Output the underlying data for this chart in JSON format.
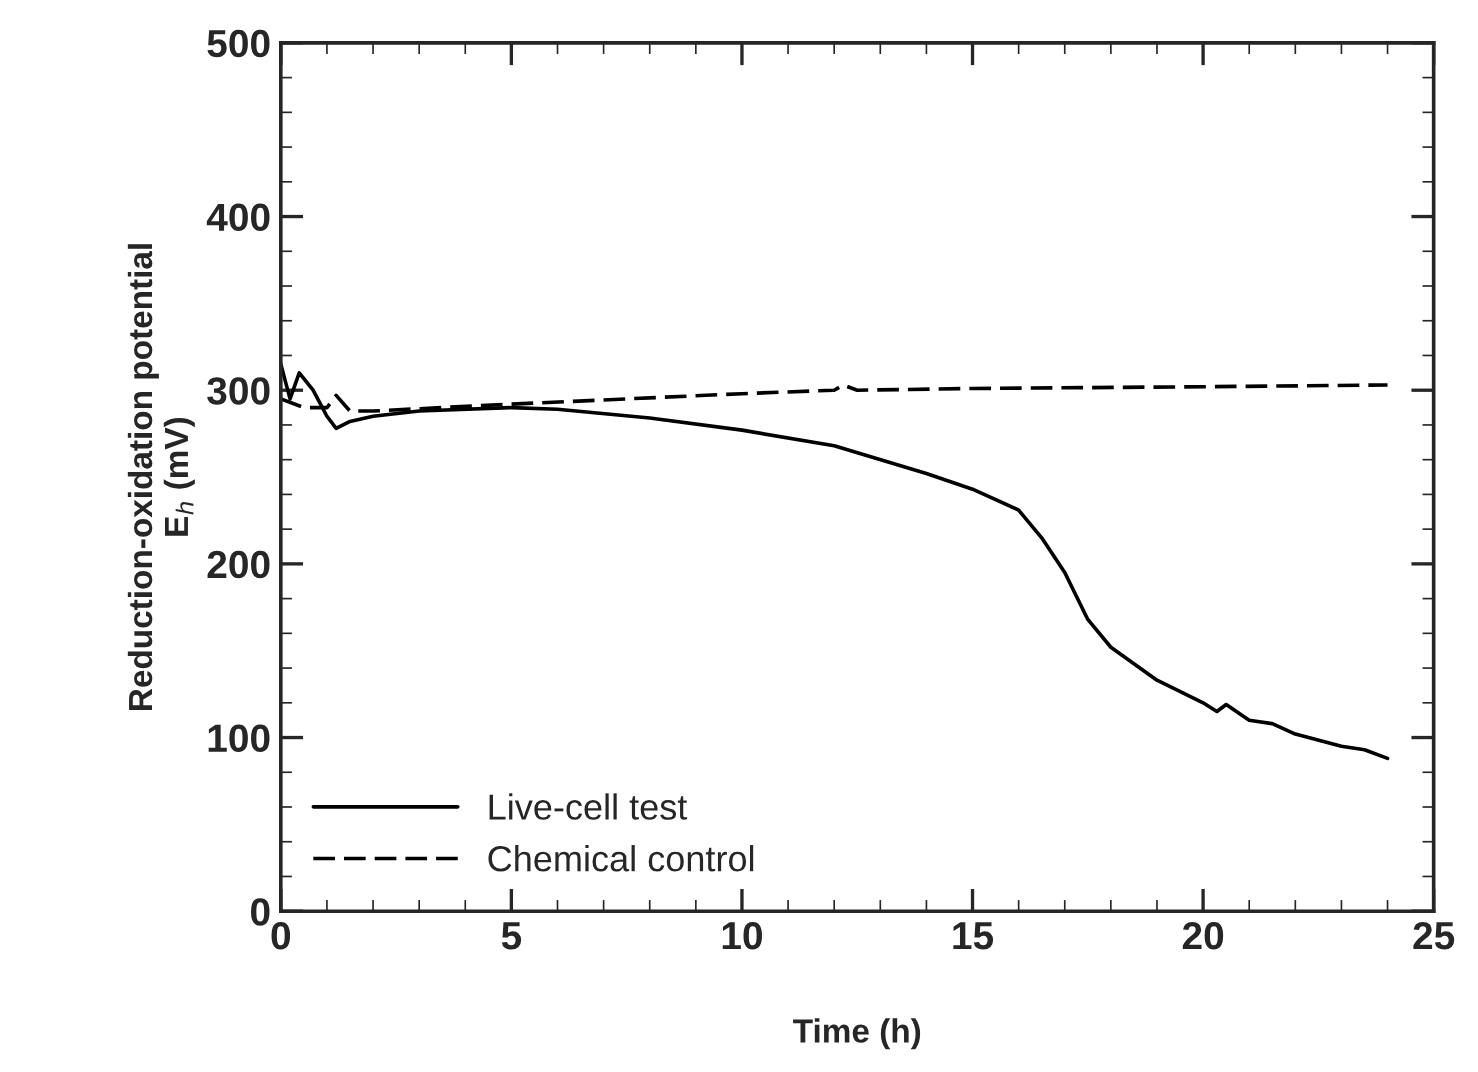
{
  "chart_data": {
    "type": "line",
    "xlabel": "Time (h)",
    "ylabel": "Reduction-oxidation potential\nE$_{h}$ (mV)",
    "xlim": [
      0,
      25
    ],
    "ylim": [
      0,
      500
    ],
    "xticks": [
      0,
      5,
      10,
      15,
      20,
      25
    ],
    "yticks": [
      0,
      100,
      200,
      300,
      400,
      500
    ],
    "grid": false,
    "legend": "bottom left",
    "marker": "none",
    "series": [
      {
        "name": "Live-cell test",
        "color": "#000000",
        "line_style": "solid",
        "x": [
          0,
          0.2,
          0.4,
          0.7,
          1.0,
          1.2,
          1.5,
          2,
          3,
          5,
          6,
          8,
          10,
          12,
          14,
          15,
          16,
          16.5,
          17,
          17.5,
          18,
          19,
          20,
          20.3,
          20.5,
          21,
          21.5,
          22,
          23,
          23.5,
          24
        ],
        "values": [
          315,
          295,
          310,
          300,
          285,
          278,
          282,
          285,
          288,
          290,
          289,
          284,
          277,
          268,
          252,
          243,
          231,
          215,
          195,
          168,
          152,
          133,
          120,
          115,
          119,
          110,
          108,
          102,
          95,
          93,
          88
        ]
      },
      {
        "name": "Chemical control",
        "color": "#000000",
        "line_style": "dashed",
        "x": [
          0,
          0.5,
          1.0,
          1.2,
          1.5,
          2,
          5,
          10,
          12,
          12.2,
          12.5,
          15,
          20,
          24
        ],
        "values": [
          295,
          290,
          290,
          297,
          288,
          288,
          292,
          298,
          300,
          303,
          300,
          301,
          302,
          303
        ]
      }
    ]
  }
}
